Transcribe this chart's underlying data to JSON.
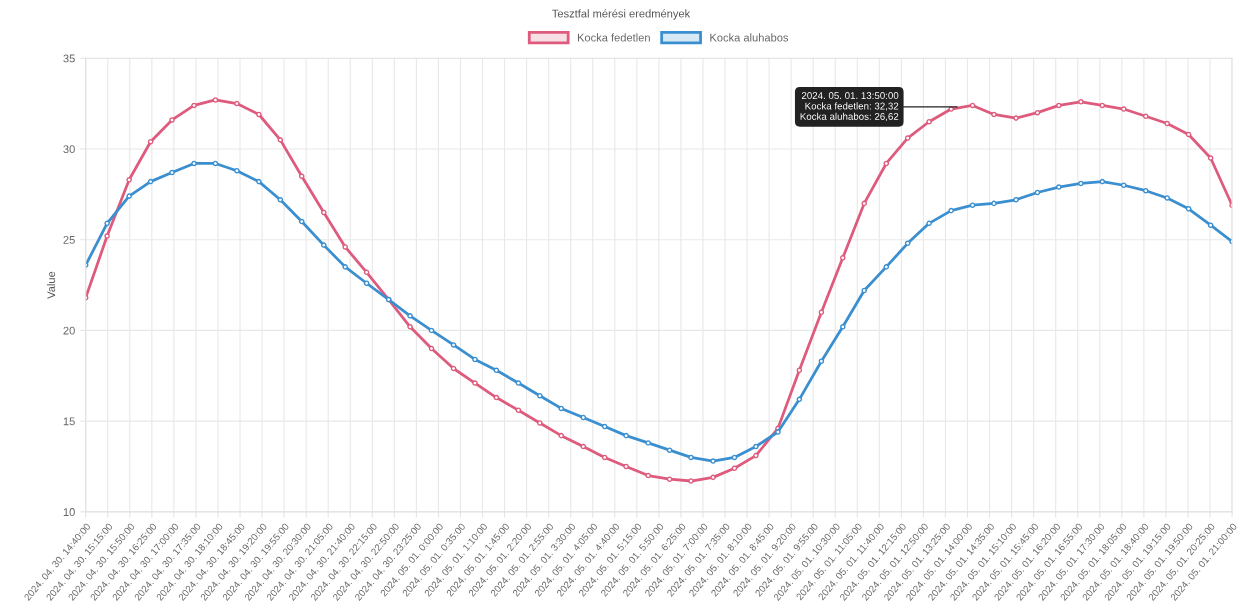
{
  "chart_data": {
    "type": "line",
    "title": "Tesztfal mérési eredmények",
    "ylabel": "Value",
    "x": [
      "2024-04-30T14:40",
      "2024-04-30T15:14",
      "2024-04-30T15:49",
      "2024-04-30T16:23",
      "2024-04-30T16:57",
      "2024-04-30T17:32",
      "2024-04-30T18:06",
      "2024-04-30T18:40",
      "2024-04-30T19:15",
      "2024-04-30T19:49",
      "2024-04-30T20:23",
      "2024-04-30T20:58",
      "2024-04-30T21:32",
      "2024-04-30T22:06",
      "2024-04-30T22:41",
      "2024-04-30T23:15",
      "2024-04-30T23:49",
      "2024-05-01T00:24",
      "2024-05-01T00:58",
      "2024-05-01T01:32",
      "2024-05-01T02:07",
      "2024-05-01T02:41",
      "2024-05-01T03:15",
      "2024-05-01T03:50",
      "2024-05-01T04:24",
      "2024-05-01T04:58",
      "2024-05-01T05:33",
      "2024-05-01T06:07",
      "2024-05-01T06:41",
      "2024-05-01T07:16",
      "2024-05-01T07:50",
      "2024-05-01T08:24",
      "2024-05-01T08:59",
      "2024-05-01T09:33",
      "2024-05-01T10:08",
      "2024-05-01T10:42",
      "2024-05-01T11:16",
      "2024-05-01T11:51",
      "2024-05-01T12:25",
      "2024-05-01T12:59",
      "2024-05-01T13:34",
      "2024-05-01T14:08",
      "2024-05-01T14:42",
      "2024-05-01T15:17",
      "2024-05-01T15:51",
      "2024-05-01T16:25",
      "2024-05-01T17:00",
      "2024-05-01T17:34",
      "2024-05-01T18:08",
      "2024-05-01T18:43",
      "2024-05-01T19:17",
      "2024-05-01T19:51",
      "2024-05-01T20:26",
      "2024-05-01T21:00"
    ],
    "series": [
      {
        "name": "Kocka fedetlen",
        "color": "#de5b7d",
        "values": [
          21.8,
          25.2,
          28.3,
          30.4,
          31.6,
          32.4,
          32.7,
          32.5,
          31.9,
          30.5,
          28.5,
          26.5,
          24.6,
          23.2,
          21.7,
          20.2,
          19.0,
          17.9,
          17.1,
          16.3,
          15.6,
          14.9,
          14.2,
          13.6,
          13.0,
          12.5,
          12.0,
          11.8,
          11.7,
          11.9,
          12.4,
          13.1,
          14.6,
          17.8,
          21.0,
          24.0,
          27.0,
          29.2,
          30.6,
          31.5,
          32.2,
          32.4,
          31.9,
          31.7,
          32.0,
          32.4,
          32.6,
          32.4,
          32.2,
          31.8,
          31.4,
          30.8,
          29.5,
          26.9
        ]
      },
      {
        "name": "Kocka aluhabos",
        "color": "#3a8fd0",
        "values": [
          23.6,
          25.9,
          27.4,
          28.2,
          28.7,
          29.2,
          29.2,
          28.8,
          28.2,
          27.2,
          26.0,
          24.7,
          23.5,
          22.6,
          21.7,
          20.8,
          20.0,
          19.2,
          18.4,
          17.8,
          17.1,
          16.4,
          15.7,
          15.2,
          14.7,
          14.2,
          13.8,
          13.4,
          13.0,
          12.8,
          13.0,
          13.6,
          14.4,
          16.2,
          18.3,
          20.2,
          22.2,
          23.5,
          24.8,
          25.9,
          26.6,
          26.9,
          27.0,
          27.2,
          27.6,
          27.9,
          28.1,
          28.2,
          28.0,
          27.7,
          27.3,
          26.7,
          25.8,
          24.9
        ]
      }
    ],
    "xlim": [
      "2024-04-30T14:40",
      "2024-05-01T21:00"
    ],
    "xticks": [
      {
        "value": "2024-04-30T14:40",
        "label": "2024. 04. 30. 14:40:00"
      },
      {
        "value": "2024-04-30T15:15",
        "label": "2024. 04. 30. 15:15:00"
      },
      {
        "value": "2024-04-30T15:50",
        "label": "2024. 04. 30. 15:50:00"
      },
      {
        "value": "2024-04-30T16:25",
        "label": "2024. 04. 30. 16:25:00"
      },
      {
        "value": "2024-04-30T17:00",
        "label": "2024. 04. 30. 17:00:00"
      },
      {
        "value": "2024-04-30T17:35",
        "label": "2024. 04. 30. 17:35:00"
      },
      {
        "value": "2024-04-30T18:10",
        "label": "2024. 04. 30. 18:10:00"
      },
      {
        "value": "2024-04-30T18:45",
        "label": "2024. 04. 30. 18:45:00"
      },
      {
        "value": "2024-04-30T19:20",
        "label": "2024. 04. 30. 19:20:00"
      },
      {
        "value": "2024-04-30T19:55",
        "label": "2024. 04. 30. 19:55:00"
      },
      {
        "value": "2024-04-30T20:30",
        "label": "2024. 04. 30. 20:30:00"
      },
      {
        "value": "2024-04-30T21:05",
        "label": "2024. 04. 30. 21:05:00"
      },
      {
        "value": "2024-04-30T21:40",
        "label": "2024. 04. 30. 21:40:00"
      },
      {
        "value": "2024-04-30T22:15",
        "label": "2024. 04. 30. 22:15:00"
      },
      {
        "value": "2024-04-30T22:50",
        "label": "2024. 04. 30. 22:50:00"
      },
      {
        "value": "2024-04-30T23:25",
        "label": "2024. 04. 30. 23:25:00"
      },
      {
        "value": "2024-05-01T00:00",
        "label": "2024. 05. 01. 0:00:00"
      },
      {
        "value": "2024-05-01T00:35",
        "label": "2024. 05. 01. 0:35:00"
      },
      {
        "value": "2024-05-01T01:10",
        "label": "2024. 05. 01. 1:10:00"
      },
      {
        "value": "2024-05-01T01:45",
        "label": "2024. 05. 01. 1:45:00"
      },
      {
        "value": "2024-05-01T02:20",
        "label": "2024. 05. 01. 2:20:00"
      },
      {
        "value": "2024-05-01T02:55",
        "label": "2024. 05. 01. 2:55:00"
      },
      {
        "value": "2024-05-01T03:30",
        "label": "2024. 05. 01. 3:30:00"
      },
      {
        "value": "2024-05-01T04:05",
        "label": "2024. 05. 01. 4:05:00"
      },
      {
        "value": "2024-05-01T04:40",
        "label": "2024. 05. 01. 4:40:00"
      },
      {
        "value": "2024-05-01T05:15",
        "label": "2024. 05. 01. 5:15:00"
      },
      {
        "value": "2024-05-01T05:50",
        "label": "2024. 05. 01. 5:50:00"
      },
      {
        "value": "2024-05-01T06:25",
        "label": "2024. 05. 01. 6:25:00"
      },
      {
        "value": "2024-05-01T07:00",
        "label": "2024. 05. 01. 7:00:00"
      },
      {
        "value": "2024-05-01T07:35",
        "label": "2024. 05. 01. 7:35:00"
      },
      {
        "value": "2024-05-01T08:10",
        "label": "2024. 05. 01. 8:10:00"
      },
      {
        "value": "2024-05-01T08:45",
        "label": "2024. 05. 01. 8:45:00"
      },
      {
        "value": "2024-05-01T09:20",
        "label": "2024. 05. 01. 9:20:00"
      },
      {
        "value": "2024-05-01T09:55",
        "label": "2024. 05. 01. 9:55:00"
      },
      {
        "value": "2024-05-01T10:30",
        "label": "2024. 05. 01. 10:30:00"
      },
      {
        "value": "2024-05-01T11:05",
        "label": "2024. 05. 01. 11:05:00"
      },
      {
        "value": "2024-05-01T11:40",
        "label": "2024. 05. 01. 11:40:00"
      },
      {
        "value": "2024-05-01T12:15",
        "label": "2024. 05. 01. 12:15:00"
      },
      {
        "value": "2024-05-01T12:50",
        "label": "2024. 05. 01. 12:50:00"
      },
      {
        "value": "2024-05-01T13:25",
        "label": "2024. 05. 01. 13:25:00"
      },
      {
        "value": "2024-05-01T14:00",
        "label": "2024. 05. 01. 14:00:00"
      },
      {
        "value": "2024-05-01T14:35",
        "label": "2024. 05. 01. 14:35:00"
      },
      {
        "value": "2024-05-01T15:10",
        "label": "2024. 05. 01. 15:10:00"
      },
      {
        "value": "2024-05-01T15:45",
        "label": "2024. 05. 01. 15:45:00"
      },
      {
        "value": "2024-05-01T16:20",
        "label": "2024. 05. 01. 16:20:00"
      },
      {
        "value": "2024-05-01T16:55",
        "label": "2024. 05. 01. 16:55:00"
      },
      {
        "value": "2024-05-01T17:30",
        "label": "2024. 05. 01. 17:30:00"
      },
      {
        "value": "2024-05-01T18:05",
        "label": "2024. 05. 01. 18:05:00"
      },
      {
        "value": "2024-05-01T18:40",
        "label": "2024. 05. 01. 18:40:00"
      },
      {
        "value": "2024-05-01T19:15",
        "label": "2024. 05. 01. 19:15:00"
      },
      {
        "value": "2024-05-01T19:50",
        "label": "2024. 05. 01. 19:50:00"
      },
      {
        "value": "2024-05-01T20:25",
        "label": "2024. 05. 01. 20:25:00"
      },
      {
        "value": "2024-05-01T21:00",
        "label": "2024. 05. 01. 21:00:00"
      }
    ],
    "ylim": [
      10,
      35
    ],
    "yticks": [
      10,
      15,
      20,
      25,
      30,
      35
    ],
    "grid": true,
    "legend": "top",
    "marker": "circle",
    "line_style": "solid",
    "annotations": [
      {
        "text": "2024. 05. 01. 13:50:00\nKocka fedetlen: 32,32\nKocka aluhabos: 26,62",
        "x": "2024-05-01T13:50",
        "y": 32.32
      }
    ]
  }
}
